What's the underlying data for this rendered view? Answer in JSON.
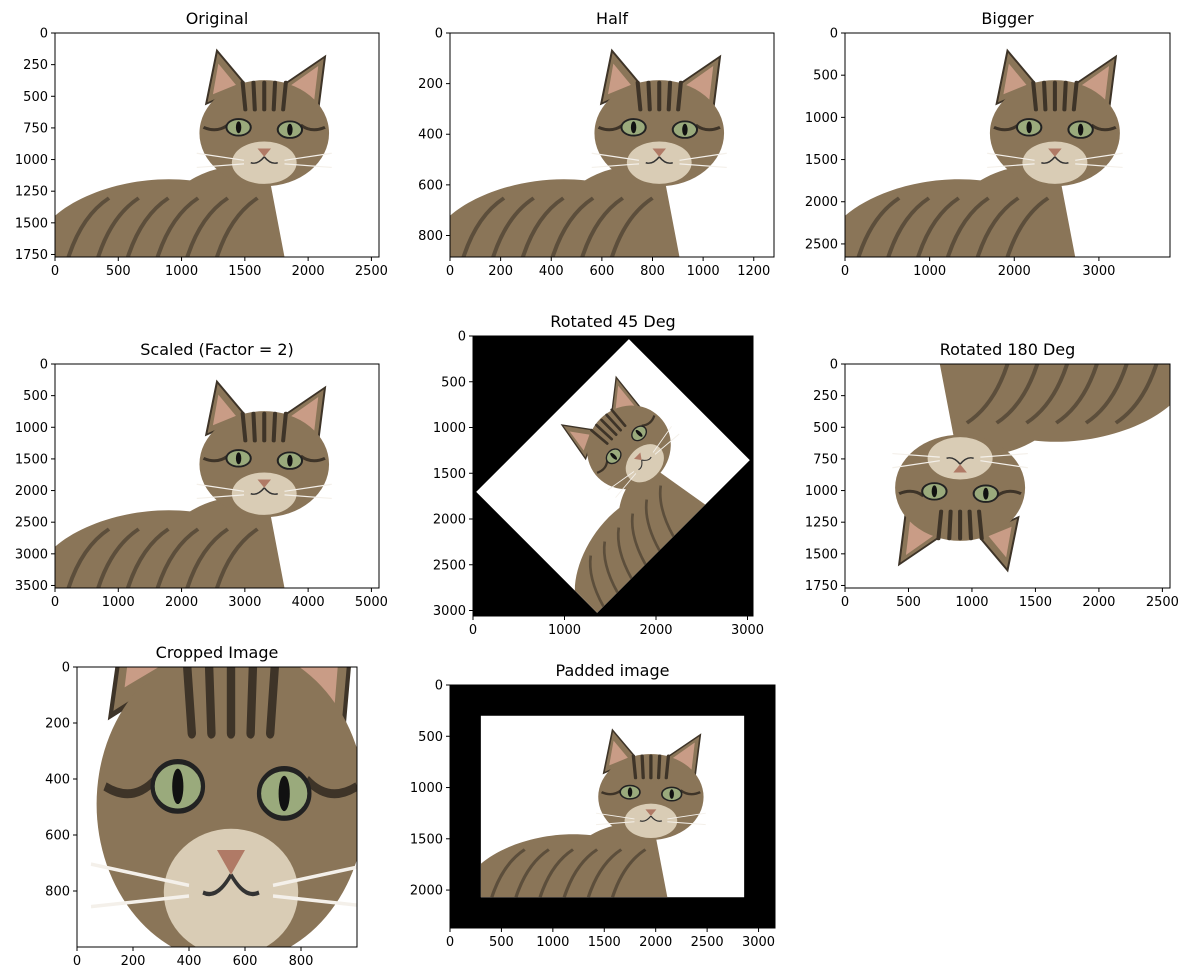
{
  "figure": {
    "layout": "3x3 grid of image subplots"
  },
  "chart_data": [
    {
      "type": "image",
      "title": "Original",
      "content": "cat",
      "xlim": [
        0,
        2560
      ],
      "ylim": [
        1770,
        0
      ],
      "xticks": [
        0,
        500,
        1000,
        1500,
        2000,
        2500
      ],
      "yticks": [
        0,
        250,
        500,
        750,
        1000,
        1250,
        1500,
        1750
      ],
      "background": "#ffffff"
    },
    {
      "type": "image",
      "title": "Half",
      "content": "cat",
      "xlim": [
        0,
        1280
      ],
      "ylim": [
        885,
        0
      ],
      "xticks": [
        0,
        200,
        400,
        600,
        800,
        1000,
        1200
      ],
      "yticks": [
        0,
        200,
        400,
        600,
        800
      ],
      "background": "#ffffff"
    },
    {
      "type": "image",
      "title": "Bigger",
      "content": "cat",
      "xlim": [
        0,
        3840
      ],
      "ylim": [
        2655,
        0
      ],
      "xticks": [
        0,
        1000,
        2000,
        3000
      ],
      "yticks": [
        0,
        500,
        1000,
        1500,
        2000,
        2500
      ],
      "background": "#ffffff"
    },
    {
      "type": "image",
      "title": "Scaled (Factor = 2)",
      "content": "cat",
      "xlim": [
        0,
        5120
      ],
      "ylim": [
        3540,
        0
      ],
      "xticks": [
        0,
        1000,
        2000,
        3000,
        4000,
        5000
      ],
      "yticks": [
        0,
        500,
        1000,
        1500,
        2000,
        2500,
        3000,
        3500
      ],
      "background": "#ffffff"
    },
    {
      "type": "image",
      "title": "Rotated 45 Deg",
      "content": "cat rotated 45 degrees on black canvas",
      "xlim": [
        0,
        3060
      ],
      "ylim": [
        3060,
        0
      ],
      "xticks": [
        0,
        1000,
        2000,
        3000
      ],
      "yticks": [
        0,
        500,
        1000,
        1500,
        2000,
        2500,
        3000
      ],
      "background": "#000000",
      "rotation_deg": 45
    },
    {
      "type": "image",
      "title": "Rotated 180 Deg",
      "content": "cat upside down",
      "xlim": [
        0,
        2560
      ],
      "ylim": [
        1770,
        0
      ],
      "xticks": [
        0,
        500,
        1000,
        1500,
        2000,
        2500
      ],
      "yticks": [
        0,
        250,
        500,
        750,
        1000,
        1250,
        1500,
        1750
      ],
      "background": "#ffffff",
      "rotation_deg": 180
    },
    {
      "type": "image",
      "title": "Cropped Image",
      "content": "close-up of cat face",
      "xlim": [
        0,
        1000
      ],
      "ylim": [
        1000,
        0
      ],
      "xticks": [
        0,
        200,
        400,
        600,
        800
      ],
      "yticks": [
        0,
        200,
        400,
        600,
        800
      ],
      "background": "#ffffff"
    },
    {
      "type": "image",
      "title": "Padded image",
      "content": "cat with black border padding",
      "xlim": [
        0,
        3160
      ],
      "ylim": [
        2370,
        0
      ],
      "xticks": [
        0,
        500,
        1000,
        1500,
        2000,
        2500,
        3000
      ],
      "yticks": [
        0,
        500,
        1000,
        1500,
        2000
      ],
      "background": "#000000"
    }
  ]
}
